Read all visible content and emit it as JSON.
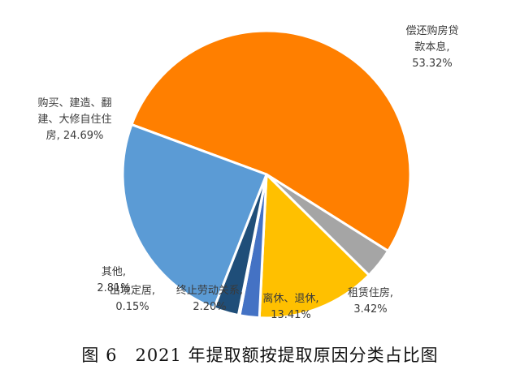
{
  "caption": "图 6　2021 年提取额按提取原因分类占比图",
  "chart_data": {
    "type": "pie",
    "title": "",
    "start_angle_deg": 290.3,
    "direction": "clockwise",
    "slices": [
      {
        "lines": [
          "偿还购房贷",
          "款本息,",
          "53.32%"
        ],
        "name": "偿还购房贷款本息",
        "value": 53.32,
        "color": "#FF7F00"
      },
      {
        "lines": [
          "租赁住房,",
          "3.42%"
        ],
        "name": "租赁住房",
        "value": 3.42,
        "color": "#A5A5A5"
      },
      {
        "lines": [
          "离休、退休,",
          "13.41%"
        ],
        "name": "离休、退休",
        "value": 13.41,
        "color": "#FFC000"
      },
      {
        "lines": [
          "终止劳动关系,",
          "2.20%"
        ],
        "name": "终止劳动关系",
        "value": 2.2,
        "color": "#4472C4"
      },
      {
        "lines": [
          "出境定居,",
          "0.15%"
        ],
        "name": "出境定居",
        "value": 0.15,
        "color": "#2E75B6"
      },
      {
        "lines": [
          "其他,",
          "2.81%"
        ],
        "name": "其他",
        "value": 2.81,
        "color": "#1F4E79"
      },
      {
        "lines": [
          "购买、建造、翻",
          "建、大修自住住",
          "房, 24.69%"
        ],
        "name": "购买、建造、翻建、大修自住住房",
        "value": 24.69,
        "color": "#5B9BD5"
      }
    ]
  }
}
